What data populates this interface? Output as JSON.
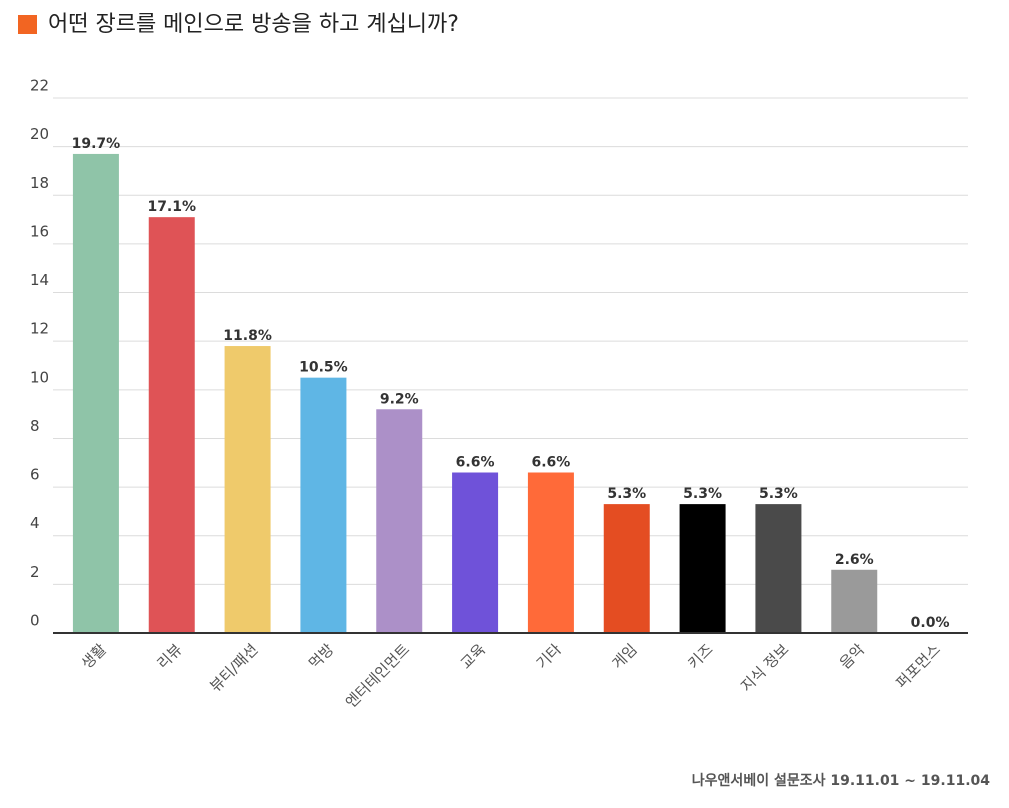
{
  "chart_data": {
    "type": "bar",
    "title": "어떤 장르를 메인으로 방송을 하고 계십니까?",
    "categories": [
      "생활",
      "리뷰",
      "뷰티/패션",
      "먹방",
      "엔터테인먼트",
      "교육",
      "기타",
      "게임",
      "키즈",
      "지식 정보",
      "음악",
      "퍼포먼스"
    ],
    "values": [
      19.7,
      17.1,
      11.8,
      10.5,
      9.2,
      6.6,
      6.6,
      5.3,
      5.3,
      5.3,
      2.6,
      0.0
    ],
    "value_labels": [
      "19.7%",
      "17.1%",
      "11.8%",
      "10.5%",
      "9.2%",
      "6.6%",
      "6.6%",
      "5.3%",
      "5.3%",
      "5.3%",
      "2.6%",
      "0.0%"
    ],
    "colors": [
      "#8fc4a8",
      "#df5356",
      "#efca6b",
      "#5fb6e5",
      "#ac90c8",
      "#6f52d9",
      "#ff6a39",
      "#e44d22",
      "#000000",
      "#4a4a4a",
      "#9a9a9a",
      "#cccccc"
    ],
    "ylim": [
      0,
      22
    ],
    "yticks": [
      0,
      2,
      4,
      6,
      8,
      10,
      12,
      14,
      16,
      18,
      20,
      22
    ],
    "grid": true,
    "source": "나우앤서베이 설문조사 19.11.01 ~ 19.11.04"
  }
}
